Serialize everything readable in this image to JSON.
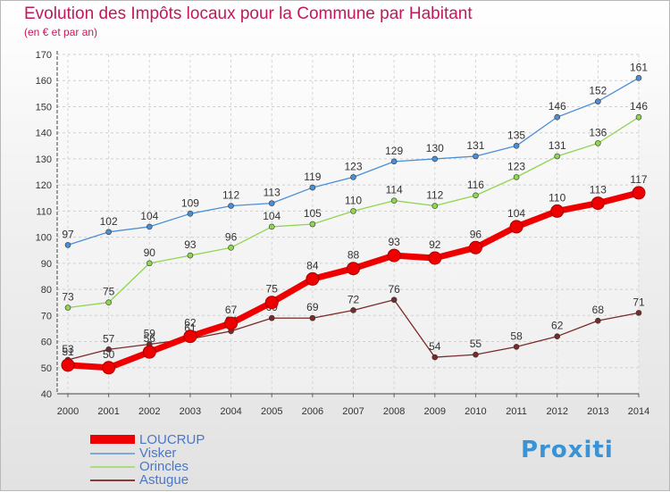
{
  "title": "Evolution des Impôts locaux pour la Commune par Habitant",
  "subtitle": "(en € et par an)",
  "brand": "Proxiti",
  "chart_data": {
    "type": "line",
    "x": [
      "2000",
      "2001",
      "2002",
      "2003",
      "2004",
      "2005",
      "2006",
      "2007",
      "2008",
      "2009",
      "2010",
      "2011",
      "2012",
      "2013",
      "2014"
    ],
    "ylim": [
      40,
      170
    ],
    "yticks": [
      40,
      50,
      60,
      70,
      80,
      90,
      100,
      110,
      120,
      130,
      140,
      150,
      160,
      170
    ],
    "grid": true,
    "legend_position": "bottom-left",
    "series": [
      {
        "name": "Visker",
        "color": "#4a8fd6",
        "values": [
          97,
          102,
          104,
          109,
          112,
          113,
          119,
          123,
          129,
          130,
          131,
          135,
          146,
          152,
          161
        ]
      },
      {
        "name": "Orincles",
        "color": "#8fd650",
        "values": [
          73,
          75,
          90,
          93,
          96,
          104,
          105,
          110,
          114,
          112,
          116,
          123,
          131,
          136,
          146
        ]
      },
      {
        "name": "Astugue",
        "color": "#7a2a2a",
        "values": [
          53,
          57,
          59,
          61,
          64,
          69,
          69,
          72,
          76,
          54,
          55,
          58,
          62,
          68,
          71
        ]
      },
      {
        "name": "LOUCRUP",
        "color": "#ee0000",
        "values": [
          51,
          50,
          56,
          62,
          67,
          75,
          84,
          88,
          93,
          92,
          96,
          104,
          110,
          113,
          117
        ]
      }
    ]
  },
  "legend": [
    {
      "label": "LOUCRUP",
      "color": "#ee0000"
    },
    {
      "label": "Visker",
      "color": "#7fa9d6"
    },
    {
      "label": "Orincles",
      "color": "#a9dd7f"
    },
    {
      "label": "Astugue",
      "color": "#8a3a3a"
    }
  ]
}
